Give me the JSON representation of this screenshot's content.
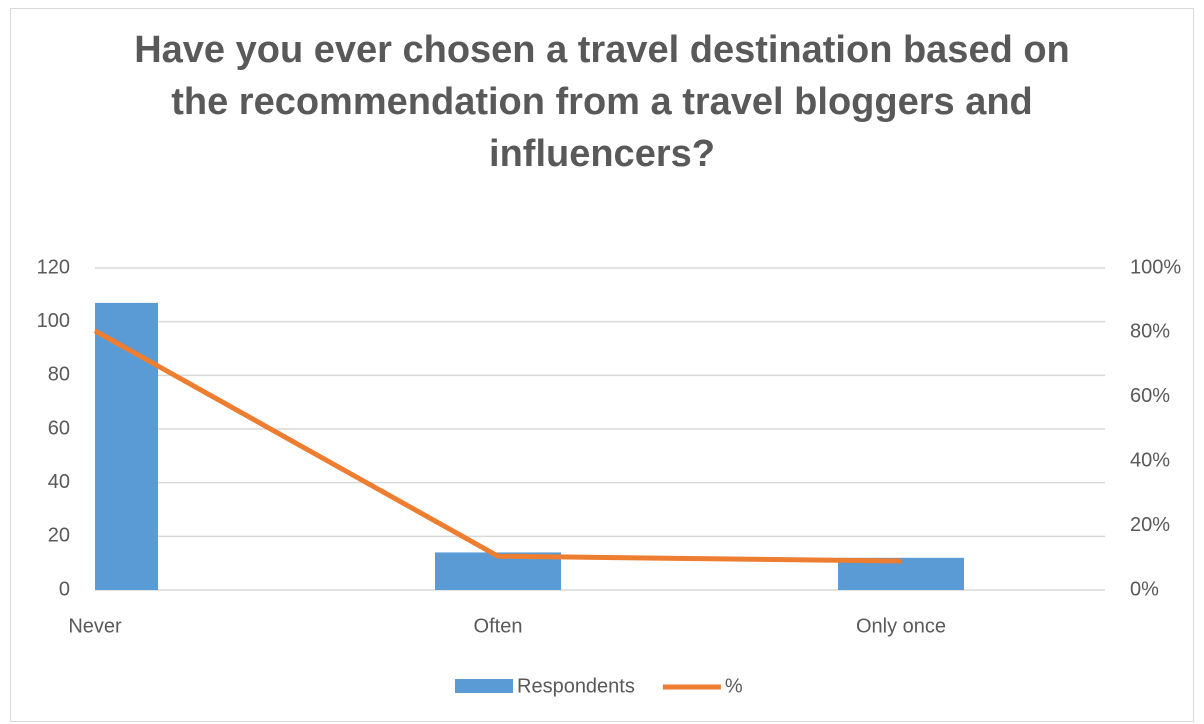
{
  "chart_data": {
    "type": "bar-line",
    "title": "Have you ever chosen a travel destination based on the recommendation from a travel bloggers and influencers?",
    "categories": [
      "Never",
      "Often",
      "Only once"
    ],
    "series": [
      {
        "name": "Respondents",
        "type": "bar",
        "color": "#5b9bd5",
        "values": [
          107,
          14,
          12
        ]
      },
      {
        "name": "%",
        "type": "line",
        "axis": "y2",
        "color": "#ed7d31",
        "values": [
          80.5,
          10.5,
          9.0
        ]
      }
    ],
    "ylim": [
      0,
      120
    ],
    "yticks": [
      0,
      20,
      40,
      60,
      80,
      100,
      120
    ],
    "y2lim": [
      0,
      100
    ],
    "y2ticks": [
      {
        "value": 0,
        "label": "0%"
      },
      {
        "value": 20,
        "label": "20%"
      },
      {
        "value": 40,
        "label": "40%"
      },
      {
        "value": 60,
        "label": "60%"
      },
      {
        "value": 80,
        "label": "80%"
      },
      {
        "value": 100,
        "label": "100%"
      }
    ],
    "grid": true,
    "legend": "bottom"
  }
}
